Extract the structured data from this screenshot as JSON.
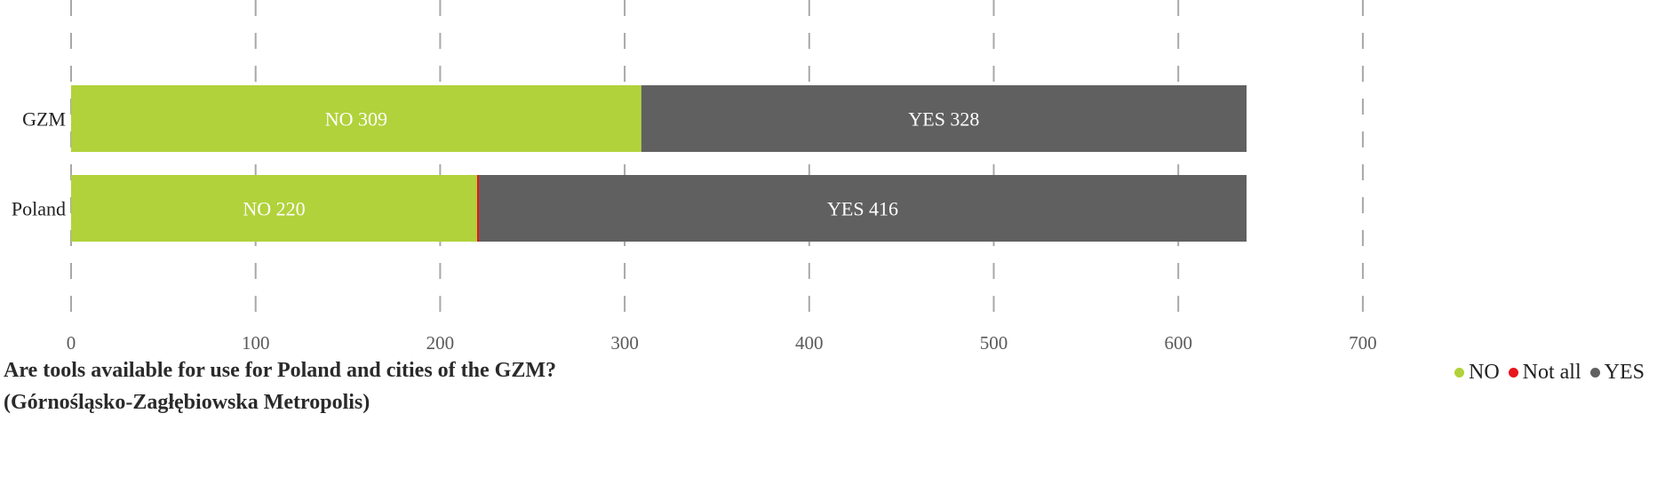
{
  "chart_data": {
    "type": "bar",
    "orientation": "horizontal",
    "stacked": true,
    "title": "Are tools available for use for Poland and cities of the GZM?",
    "subtitle": "(Górnośląsko-Zagłębiowska Metropolis)",
    "categories": [
      "GZM",
      "Poland"
    ],
    "series": [
      {
        "name": "NO",
        "color": "#b1d23b",
        "values": [
          309,
          220
        ],
        "labels": [
          "NO 309",
          "NO 220"
        ]
      },
      {
        "name": "Not all",
        "color": "#e8161b",
        "values": [
          0,
          1
        ],
        "labels": [
          "",
          ""
        ]
      },
      {
        "name": "YES",
        "color": "#606060",
        "values": [
          328,
          416
        ],
        "labels": [
          "YES 328",
          "YES 416"
        ]
      }
    ],
    "xlim": [
      0,
      700
    ],
    "xticks": [
      0,
      100,
      200,
      300,
      400,
      500,
      600,
      700
    ],
    "grid": "vertical dashed",
    "legend_position": "bottom-right"
  }
}
